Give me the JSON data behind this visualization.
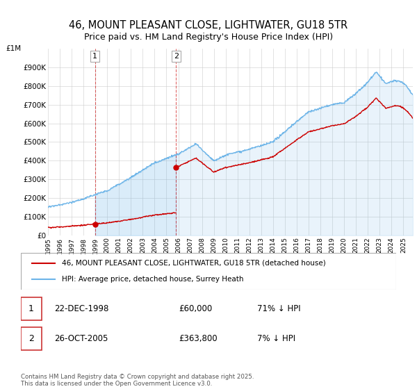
{
  "title": "46, MOUNT PLEASANT CLOSE, LIGHTWATER, GU18 5TR",
  "subtitle": "Price paid vs. HM Land Registry's House Price Index (HPI)",
  "title_fontsize": 10.5,
  "subtitle_fontsize": 9,
  "hpi_color": "#6cb4e8",
  "hpi_fill_color": "#dceef9",
  "price_color": "#cc0000",
  "purchase1_date": 1998.97,
  "purchase1_price": 60000,
  "purchase1_label": "1",
  "purchase2_date": 2005.82,
  "purchase2_price": 363800,
  "purchase2_label": "2",
  "legend_line1": "46, MOUNT PLEASANT CLOSE, LIGHTWATER, GU18 5TR (detached house)",
  "legend_line2": "HPI: Average price, detached house, Surrey Heath",
  "footnote": "Contains HM Land Registry data © Crown copyright and database right 2025.\nThis data is licensed under the Open Government Licence v3.0.",
  "table_rows": [
    {
      "num": "1",
      "date": "22-DEC-1998",
      "price": "£60,000",
      "hpi": "71% ↓ HPI"
    },
    {
      "num": "2",
      "date": "26-OCT-2005",
      "price": "£363,800",
      "hpi": "7% ↓ HPI"
    }
  ],
  "bg_color": "#ffffff",
  "grid_color": "#cccccc",
  "xmin": 1995.0,
  "xmax": 2025.8,
  "ylim": [
    0,
    1000000
  ],
  "yticks": [
    0,
    100000,
    200000,
    300000,
    400000,
    500000,
    600000,
    700000,
    800000,
    900000
  ],
  "ytick_labels": [
    "£0",
    "£100K",
    "£200K",
    "£300K",
    "£400K",
    "£500K",
    "£600K",
    "£700K",
    "£800K",
    "£900K"
  ],
  "ytop_label": "£1M"
}
